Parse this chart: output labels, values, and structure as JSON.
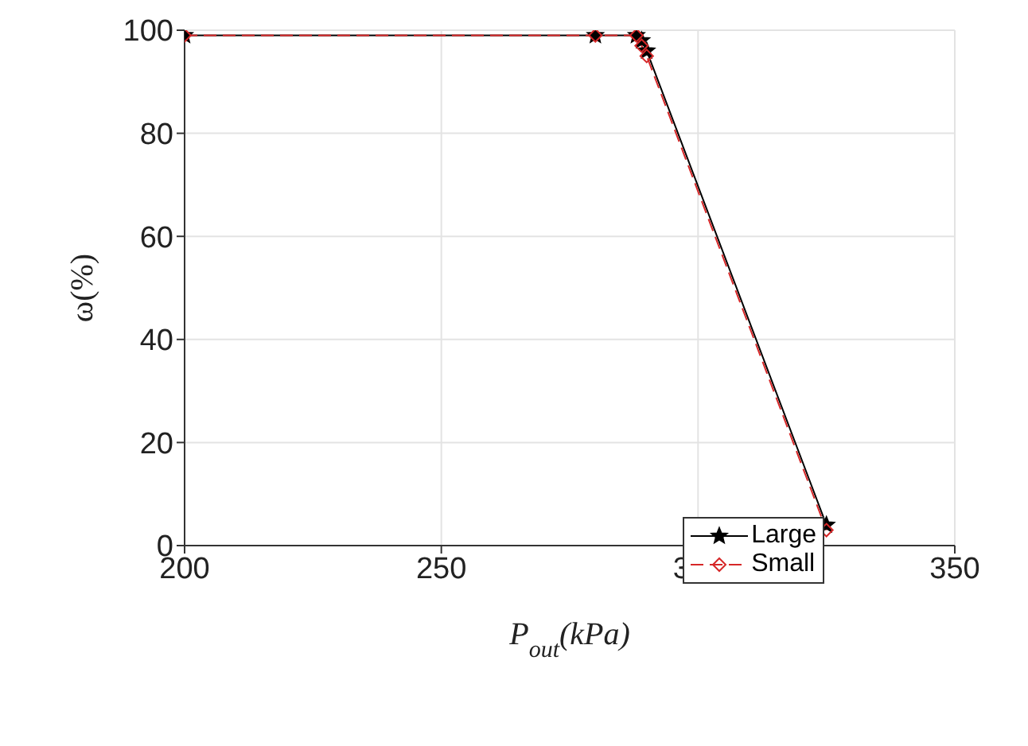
{
  "chart_data": {
    "type": "line",
    "xlabel": "P$_{out}$(kPa)",
    "ylabel": "ω(%)",
    "xlim": [
      200,
      350
    ],
    "xticks": [
      200,
      250,
      300,
      350
    ],
    "ylim": [
      0,
      100
    ],
    "yticks": [
      0,
      20,
      40,
      60,
      80,
      100
    ],
    "grid": true,
    "legend": "bottom right",
    "series": [
      {
        "name": "Large",
        "color": "#000000",
        "marker": "star",
        "line_style": "solid",
        "x": [
          200,
          280,
          288,
          289,
          290,
          325
        ],
        "values": [
          99,
          99,
          99,
          98,
          96,
          4
        ]
      },
      {
        "name": "Small",
        "color": "#d62728",
        "marker": "diamond",
        "line_style": "dashed",
        "x": [
          200,
          280,
          288,
          289,
          290,
          325
        ],
        "values": [
          99,
          99,
          99,
          97,
          95,
          3
        ]
      }
    ]
  }
}
